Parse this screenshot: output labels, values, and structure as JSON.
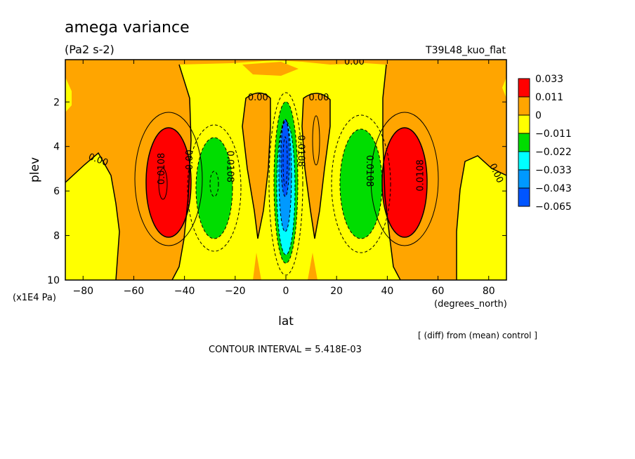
{
  "chart_data": {
    "type": "heatmap",
    "title": "amega variance",
    "units": "(Pa2 s-2)",
    "run_label": "T39L48_kuo_flat",
    "xlabel": "lat",
    "x_units": "(degrees_north)",
    "ylabel": "plev",
    "y_units": "(x1E4 Pa)",
    "xlim": [
      -87,
      87
    ],
    "ylim": [
      0.1,
      10
    ],
    "y_inverted": true,
    "x_ticks": [
      -80,
      -60,
      -40,
      -20,
      0,
      20,
      40,
      60,
      80
    ],
    "y_ticks": [
      2,
      4,
      6,
      8,
      10
    ],
    "footer_note": "[ (diff) from (mean) control ]",
    "contour_interval_text": "CONTOUR INTERVAL = 5.418E-03",
    "colorbar": {
      "levels": [
        "0.033",
        "0.011",
        "0",
        "−0.011",
        "−0.022",
        "−0.033",
        "−0.043",
        "−0.065"
      ],
      "colors": [
        "#ff0000",
        "#ffa500",
        "#ffff00",
        "#00dd00",
        "#00ffff",
        "#0099ff",
        "#0055ff",
        "#ff0000"
      ]
    },
    "features": [
      {
        "name": "positive-max-south",
        "lat": -48,
        "plev": 5.5,
        "value": 0.033
      },
      {
        "name": "negative-min-south",
        "lat": -28,
        "plev": 5.5,
        "value": -0.022
      },
      {
        "name": "negative-min-equator",
        "lat": 0,
        "plev": 5.0,
        "value": -0.065
      },
      {
        "name": "negative-min-north",
        "lat": 30,
        "plev": 5.5,
        "value": -0.022
      },
      {
        "name": "positive-max-north",
        "lat": 48,
        "plev": 5.5,
        "value": 0.033
      }
    ],
    "contour_labels": [
      {
        "text": "0.00",
        "lat": -74,
        "plev": 4.6,
        "rotate": 20
      },
      {
        "text": "0.0108",
        "lat": -49,
        "plev": 5.0,
        "rotate": -90
      },
      {
        "text": "0.00",
        "lat": -38,
        "plev": 4.6,
        "rotate": -90
      },
      {
        "text": "0.0108",
        "lat": -22,
        "plev": 4.9,
        "rotate": 90
      },
      {
        "text": "0.00",
        "lat": -11,
        "plev": 1.8,
        "rotate": 0
      },
      {
        "text": "0.0108",
        "lat": 6,
        "plev": 4.2,
        "rotate": 90
      },
      {
        "text": "0.00",
        "lat": 13,
        "plev": 1.8,
        "rotate": 0
      },
      {
        "text": "0.00",
        "lat": 27,
        "plev": 0.2,
        "rotate": 0
      },
      {
        "text": "0.0108",
        "lat": 33,
        "plev": 5.1,
        "rotate": 90
      },
      {
        "text": "0.0108",
        "lat": 53,
        "plev": 5.3,
        "rotate": -90
      },
      {
        "text": "0.00",
        "lat": 83,
        "plev": 5.2,
        "rotate": 65
      }
    ]
  }
}
